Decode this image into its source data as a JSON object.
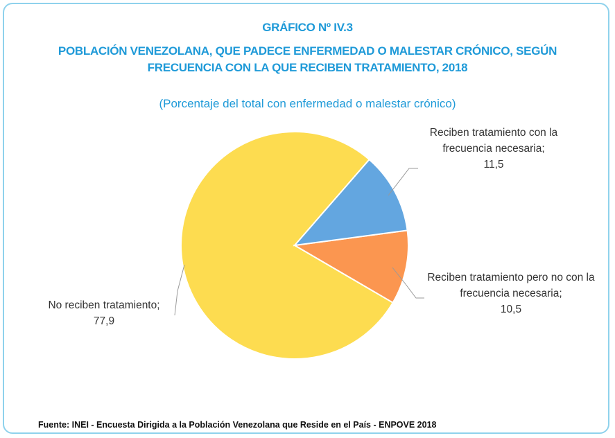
{
  "chart_data": {
    "type": "pie",
    "title_lines": [
      "GRÁFICO Nº  IV.3",
      "POBLACIÓN VENEZOLANA, QUE PADECE ENFERMEDAD O MALESTAR CRÓNICO, SEGÚN",
      "FRECUENCIA CON LA QUE RECIBEN TRATAMIENTO, 2018"
    ],
    "subtitle": "(Porcentaje del total con enfermedad o malestar crónico)",
    "categories": [
      "Reciben tratamiento con la frecuencia necesaria;",
      "Reciben tratamiento pero no con la frecuencia necesaria;",
      "No reciben tratamiento;"
    ],
    "values": [
      11.5,
      10.5,
      77.9
    ],
    "value_labels": [
      "11,5",
      "10,5",
      "77,9"
    ],
    "colors": [
      "#63a6e0",
      "#fb9650",
      "#fddc50"
    ],
    "source": "Fuente: INEI - Encuesta Dirigida a la Población Venezolana que Reside en el País - ENPOVE 2018"
  }
}
